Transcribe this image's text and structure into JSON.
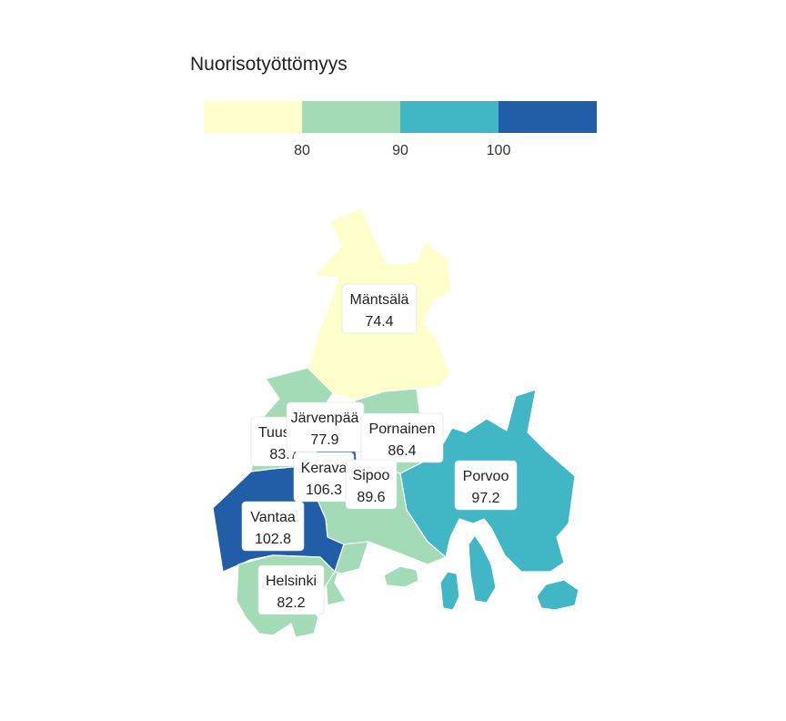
{
  "legend": {
    "title": "Nuorisotyöttömyys",
    "ticks": [
      "80",
      "90",
      "100"
    ],
    "bins": [
      {
        "range": "< 80",
        "color": "#ffffcc"
      },
      {
        "range": "80–90",
        "color": "#a3dbb6"
      },
      {
        "range": "90–100",
        "color": "#41b6c4"
      },
      {
        "range": "> 100",
        "color": "#225ea8"
      }
    ]
  },
  "regions": [
    {
      "name": "Mäntsälä",
      "value": "74.4",
      "color": "#ffffcc"
    },
    {
      "name": "Järvenpää",
      "value": "77.9",
      "color": "#ffffcc"
    },
    {
      "name": "Tuusula",
      "value": "83.7",
      "color": "#a3dbb6"
    },
    {
      "name": "Pornainen",
      "value": "86.4",
      "color": "#a3dbb6"
    },
    {
      "name": "Kerava",
      "value": "106.3",
      "color": "#225ea8"
    },
    {
      "name": "Sipoo",
      "value": "89.6",
      "color": "#a3dbb6"
    },
    {
      "name": "Porvoo",
      "value": "97.2",
      "color": "#41b6c4"
    },
    {
      "name": "Vantaa",
      "value": "102.8",
      "color": "#225ea8"
    },
    {
      "name": "Helsinki",
      "value": "82.2",
      "color": "#a3dbb6"
    }
  ]
}
